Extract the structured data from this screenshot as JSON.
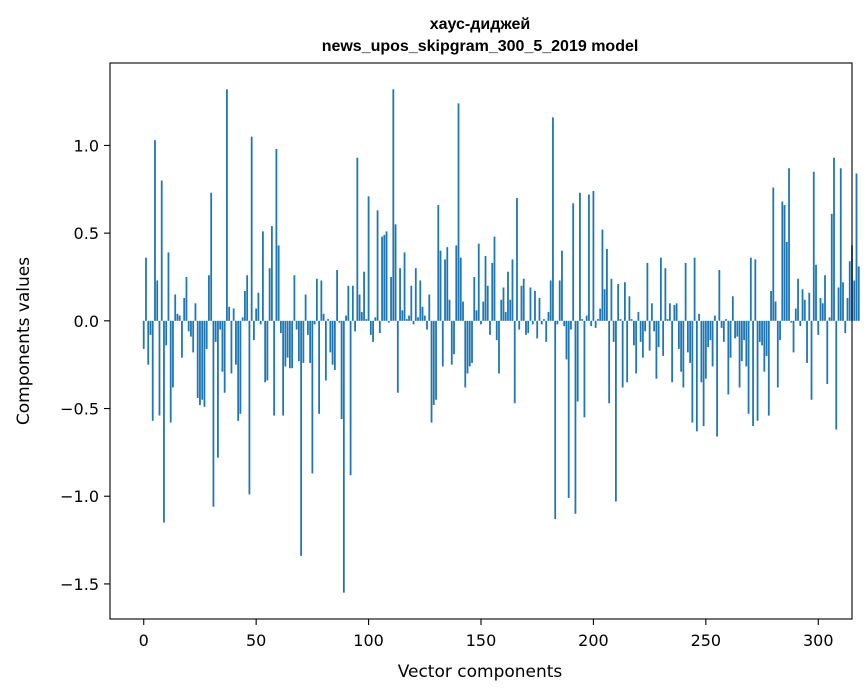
{
  "chart_data": {
    "type": "bar",
    "title_line1": "хаус-диджей",
    "title_line2": "news_upos_skipgram_300_5_2019 model",
    "xlabel": "Vector components",
    "ylabel": "Components values",
    "xlim": [
      -15,
      315
    ],
    "ylim": [
      -1.7,
      1.47
    ],
    "x_ticks": [
      0,
      50,
      100,
      150,
      200,
      250,
      300
    ],
    "y_ticks": [
      -1.5,
      -1.0,
      -0.5,
      0.0,
      0.5,
      1.0
    ],
    "y_tick_labels": [
      "−1.5",
      "−1.0",
      "−0.5",
      "0.0",
      "0.5",
      "1.0"
    ],
    "color": "#1f77b4",
    "values": [
      -0.16,
      0.36,
      -0.25,
      -0.08,
      -0.57,
      1.03,
      0.23,
      -0.54,
      0.8,
      -1.15,
      -0.14,
      0.39,
      -0.58,
      -0.38,
      0.15,
      0.04,
      0.03,
      -0.21,
      0.13,
      0.25,
      -0.06,
      -0.09,
      -0.18,
      0.1,
      -0.44,
      -0.48,
      -0.45,
      -0.49,
      -0.16,
      0.26,
      0.73,
      -1.06,
      -0.12,
      -0.78,
      -0.05,
      -0.29,
      -0.41,
      1.32,
      0.08,
      -0.3,
      0.07,
      -0.25,
      -0.57,
      -0.53,
      0.02,
      0.17,
      0.26,
      -0.99,
      1.05,
      -0.11,
      0.07,
      0.16,
      -0.02,
      0.51,
      -0.35,
      -0.34,
      0.3,
      0.54,
      -0.54,
      0.98,
      0.43,
      -0.07,
      -0.54,
      -0.26,
      -0.21,
      -0.27,
      -0.27,
      0.26,
      -0.05,
      -0.23,
      -1.34,
      -0.24,
      0.15,
      -0.08,
      -0.24,
      -0.87,
      -0.02,
      0.24,
      -0.53,
      0.23,
      0.04,
      -0.34,
      0.01,
      -0.18,
      -0.25,
      -0.28,
      0.29,
      -0.01,
      -0.56,
      -1.55,
      0.03,
      0.2,
      -0.88,
      0.2,
      -0.06,
      0.93,
      0.15,
      0.05,
      0.28,
      0.01,
      0.71,
      -0.08,
      -0.12,
      0.02,
      0.63,
      -0.07,
      0.48,
      0.49,
      0.51,
      -0.01,
      0.25,
      1.32,
      0.55,
      -0.41,
      0.3,
      0.06,
      0.39,
      0.01,
      0.03,
      0.2,
      -0.02,
      0.3,
      0.02,
      0.23,
      0.08,
      0.03,
      -0.05,
      0.15,
      -0.58,
      -0.48,
      -0.45,
      0.66,
      0.4,
      -0.26,
      0.35,
      0.42,
      0.12,
      -0.25,
      -0.19,
      0.43,
      1.24,
      0.36,
      0.11,
      -0.38,
      -0.3,
      -0.26,
      -0.24,
      0.25,
      0.06,
      0.44,
      -0.02,
      0.11,
      0.37,
      0.2,
      -0.08,
      0.33,
      0.48,
      -0.11,
      -0.3,
      0.12,
      0.19,
      0.05,
      0.28,
      0.12,
      0.35,
      -0.47,
      0.7,
      -0.05,
      0.2,
      0.24,
      -0.08,
      -0.07,
      0.19,
      -0.02,
      0.17,
      -0.1,
      0.13,
      -0.02,
      0.01,
      -0.12,
      0.05,
      0.23,
      1.16,
      -1.13,
      -0.02,
      0.23,
      0.4,
      -0.03,
      -0.22,
      -1.01,
      -0.05,
      0.67,
      -1.1,
      -0.46,
      0.73,
      0.01,
      -0.55,
      0.03,
      0.72,
      -0.03,
      0.74,
      -0.04,
      0.01,
      0.07,
      0.52,
      0.18,
      0.41,
      -0.47,
      0.24,
      -0.12,
      -1.03,
      0.21,
      0.01,
      -0.38,
      0.22,
      -0.35,
      0.14,
      0.01,
      -0.14,
      -0.3,
      0.05,
      -0.12,
      -0.21,
      -0.06,
      0.33,
      -0.17,
      0.1,
      -0.06,
      -0.33,
      -0.15,
      0.36,
      -0.2,
      0.3,
      0.01,
      0.1,
      -0.35,
      0.09,
      0.1,
      -0.16,
      -0.29,
      -0.38,
      0.33,
      -0.18,
      -0.24,
      -0.58,
      0.36,
      -0.63,
      0.04,
      -0.35,
      -0.6,
      -0.33,
      -0.15,
      -0.11,
      -0.26,
      0.03,
      -0.66,
      0.29,
      -0.04,
      -0.12,
      0.01,
      -0.42,
      -0.21,
      0.14,
      -0.1,
      -0.09,
      -0.38,
      -0.23,
      -0.11,
      -0.26,
      -0.53,
      0.36,
      -0.6,
      0.35,
      -0.57,
      -0.12,
      -0.14,
      -0.29,
      -0.2,
      -0.54,
      0.17,
      0.76,
      0.11,
      -0.38,
      -0.11,
      0.68,
      0.66,
      0.45,
      0.87,
      -0.01,
      -0.18,
      0.07,
      0.24,
      -0.03,
      0.18,
      0.12,
      -0.24,
      0.16,
      -0.45,
      0.85,
      0.32,
      -0.08,
      0.13,
      0.1,
      0.26,
      -0.36,
      0.02,
      0.61,
      0.93,
      -0.62,
      0.19,
      0.87,
      0.22,
      -0.07,
      0.13,
      0.34,
      0.43,
      0.23,
      0.84,
      0.31
    ]
  }
}
